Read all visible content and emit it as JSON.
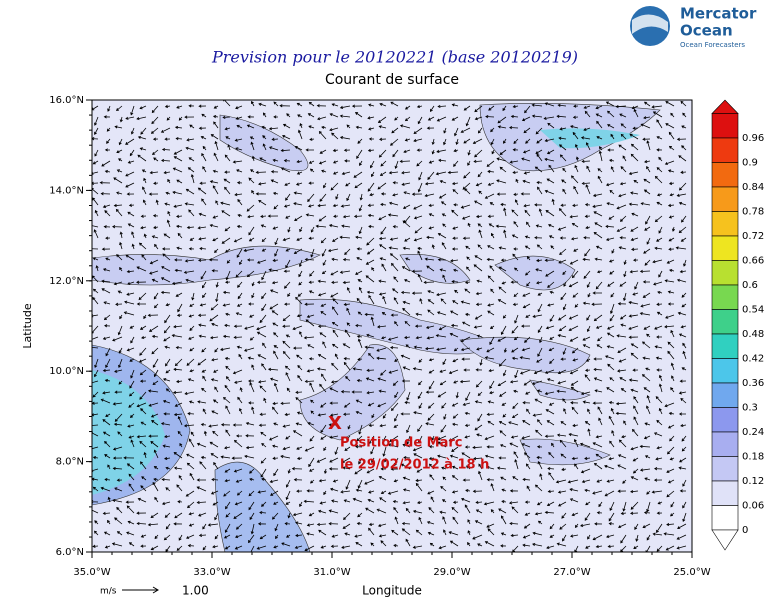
{
  "header": {
    "title": "Prevision pour le 20120221 (base 20120219)",
    "subtitle": "Courant de surface"
  },
  "logo": {
    "line1": "Mercator",
    "line2": "Ocean",
    "tagline": "Ocean Forecasters"
  },
  "axes": {
    "x_label": "Longitude",
    "y_label": "Latitude",
    "x_ticks": [
      "35.0°W",
      "33.0°W",
      "31.0°W",
      "29.0°W",
      "27.0°W",
      "25.0°W"
    ],
    "y_ticks": [
      "16.0°N",
      "14.0°N",
      "12.0°N",
      "10.0°N",
      "8.0°N",
      "6.0°N"
    ]
  },
  "colorbar": {
    "ticks": [
      0.96,
      0.9,
      0.84,
      0.78,
      0.72,
      0.66,
      0.6,
      0.54,
      0.48,
      0.42,
      0.36,
      0.3,
      0.24,
      0.18,
      0.12,
      0.06,
      0
    ]
  },
  "reference_vector": {
    "unit": "m/s",
    "value": "1.00"
  },
  "annotation": {
    "marker": "X",
    "line1": "Position de Marc",
    "line2": "le 29/02/2012 à 18 h"
  }
}
